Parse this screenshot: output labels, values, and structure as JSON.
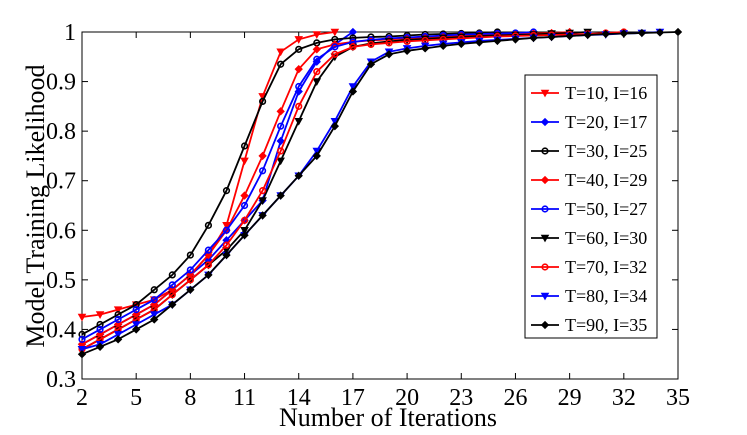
{
  "chart_data": {
    "type": "line",
    "title": "",
    "xlabel": "Number of Iterations",
    "ylabel": "Model Training Likelihood",
    "xlim": [
      2,
      35
    ],
    "ylim": [
      0.3,
      1.0
    ],
    "xticks": [
      "2",
      "5",
      "8",
      "11",
      "14",
      "17",
      "20",
      "23",
      "26",
      "29",
      "32",
      "35"
    ],
    "yticks": [
      "0.3",
      "0.4",
      "0.5",
      "0.6",
      "0.7",
      "0.8",
      "0.9",
      "1"
    ],
    "grid": false,
    "legend_position": "right",
    "series": [
      {
        "name": "T=10, I=16",
        "color": "#ff0000",
        "marker": "triangle-down",
        "x": [
          2,
          3,
          4,
          5,
          6,
          7,
          8,
          9,
          10,
          11,
          12,
          13,
          14,
          15,
          16
        ],
        "values": [
          0.425,
          0.43,
          0.44,
          0.45,
          0.46,
          0.48,
          0.51,
          0.55,
          0.61,
          0.74,
          0.87,
          0.96,
          0.985,
          0.995,
          1.0
        ]
      },
      {
        "name": "T=20, I=17",
        "color": "#0000ff",
        "marker": "diamond",
        "x": [
          2,
          3,
          4,
          5,
          6,
          7,
          8,
          9,
          10,
          11,
          12,
          13,
          14,
          15,
          16,
          17
        ],
        "values": [
          0.37,
          0.39,
          0.41,
          0.43,
          0.45,
          0.48,
          0.51,
          0.54,
          0.58,
          0.62,
          0.66,
          0.78,
          0.88,
          0.94,
          0.975,
          1.0
        ]
      },
      {
        "name": "T=30, I=25",
        "color": "#000000",
        "marker": "circle",
        "x": [
          2,
          3,
          4,
          5,
          6,
          7,
          8,
          9,
          10,
          11,
          12,
          13,
          14,
          15,
          16,
          17,
          18,
          19,
          20,
          21,
          22,
          23,
          24,
          25
        ],
        "values": [
          0.39,
          0.41,
          0.43,
          0.45,
          0.48,
          0.51,
          0.55,
          0.61,
          0.68,
          0.77,
          0.86,
          0.935,
          0.965,
          0.978,
          0.985,
          0.988,
          0.99,
          0.991,
          0.993,
          0.995,
          0.996,
          0.997,
          0.998,
          1.0
        ]
      },
      {
        "name": "T=40, I=29",
        "color": "#ff0000",
        "marker": "diamond",
        "x": [
          2,
          3,
          4,
          5,
          6,
          7,
          8,
          9,
          10,
          11,
          12,
          13,
          14,
          15,
          16,
          17,
          18,
          19,
          20,
          21,
          22,
          23,
          24,
          25,
          26,
          27,
          28,
          29
        ],
        "values": [
          0.37,
          0.39,
          0.41,
          0.43,
          0.45,
          0.48,
          0.51,
          0.55,
          0.6,
          0.67,
          0.75,
          0.84,
          0.925,
          0.965,
          0.975,
          0.98,
          0.983,
          0.985,
          0.987,
          0.989,
          0.991,
          0.993,
          0.994,
          0.995,
          0.996,
          0.997,
          0.998,
          1.0
        ]
      },
      {
        "name": "T=50, I=27",
        "color": "#0000ff",
        "marker": "circle",
        "x": [
          2,
          3,
          4,
          5,
          6,
          7,
          8,
          9,
          10,
          11,
          12,
          13,
          14,
          15,
          16,
          17,
          18,
          19,
          20,
          21,
          22,
          23,
          24,
          25,
          26,
          27
        ],
        "values": [
          0.38,
          0.4,
          0.42,
          0.44,
          0.46,
          0.49,
          0.52,
          0.56,
          0.6,
          0.65,
          0.72,
          0.81,
          0.89,
          0.945,
          0.97,
          0.98,
          0.984,
          0.987,
          0.989,
          0.991,
          0.993,
          0.995,
          0.996,
          0.997,
          0.998,
          1.0
        ]
      },
      {
        "name": "T=60, I=30",
        "color": "#000000",
        "marker": "triangle-down",
        "x": [
          2,
          3,
          4,
          5,
          6,
          7,
          8,
          9,
          10,
          11,
          12,
          13,
          14,
          15,
          16,
          17,
          18,
          19,
          20,
          21,
          22,
          23,
          24,
          25,
          26,
          27,
          28,
          29,
          30
        ],
        "values": [
          0.36,
          0.38,
          0.4,
          0.42,
          0.44,
          0.47,
          0.5,
          0.53,
          0.56,
          0.6,
          0.66,
          0.74,
          0.82,
          0.9,
          0.95,
          0.97,
          0.977,
          0.981,
          0.984,
          0.986,
          0.988,
          0.99,
          0.992,
          0.993,
          0.994,
          0.995,
          0.997,
          0.998,
          1.0
        ]
      },
      {
        "name": "T=70, I=32",
        "color": "#ff0000",
        "marker": "circle",
        "x": [
          2,
          3,
          4,
          5,
          6,
          7,
          8,
          9,
          10,
          11,
          12,
          13,
          14,
          15,
          16,
          17,
          18,
          19,
          20,
          21,
          22,
          23,
          24,
          25,
          26,
          27,
          28,
          29,
          30,
          31,
          32
        ],
        "values": [
          0.36,
          0.38,
          0.4,
          0.42,
          0.44,
          0.47,
          0.5,
          0.53,
          0.57,
          0.62,
          0.68,
          0.76,
          0.85,
          0.92,
          0.955,
          0.97,
          0.975,
          0.978,
          0.981,
          0.983,
          0.985,
          0.987,
          0.989,
          0.991,
          0.992,
          0.993,
          0.994,
          0.995,
          0.996,
          0.998,
          1.0
        ]
      },
      {
        "name": "T=80, I=34",
        "color": "#0000ff",
        "marker": "triangle-down",
        "x": [
          2,
          3,
          4,
          5,
          6,
          7,
          8,
          9,
          10,
          11,
          12,
          13,
          14,
          15,
          16,
          17,
          18,
          19,
          20,
          21,
          22,
          23,
          24,
          25,
          26,
          27,
          28,
          29,
          30,
          31,
          32,
          33,
          34
        ],
        "values": [
          0.36,
          0.37,
          0.39,
          0.41,
          0.43,
          0.45,
          0.48,
          0.51,
          0.55,
          0.59,
          0.63,
          0.67,
          0.71,
          0.76,
          0.82,
          0.89,
          0.94,
          0.96,
          0.967,
          0.972,
          0.976,
          0.979,
          0.982,
          0.984,
          0.986,
          0.988,
          0.99,
          0.992,
          0.994,
          0.995,
          0.997,
          0.998,
          1.0
        ]
      },
      {
        "name": "T=90, I=35",
        "color": "#000000",
        "marker": "diamond",
        "x": [
          2,
          3,
          4,
          5,
          6,
          7,
          8,
          9,
          10,
          11,
          12,
          13,
          14,
          15,
          16,
          17,
          18,
          19,
          20,
          21,
          22,
          23,
          24,
          25,
          26,
          27,
          28,
          29,
          30,
          31,
          32,
          33,
          34,
          35
        ],
        "values": [
          0.35,
          0.365,
          0.38,
          0.4,
          0.42,
          0.45,
          0.48,
          0.51,
          0.55,
          0.59,
          0.63,
          0.67,
          0.71,
          0.75,
          0.81,
          0.88,
          0.935,
          0.955,
          0.962,
          0.967,
          0.972,
          0.976,
          0.979,
          0.982,
          0.985,
          0.988,
          0.99,
          0.992,
          0.994,
          0.996,
          0.997,
          0.998,
          0.999,
          1.0
        ]
      }
    ]
  }
}
